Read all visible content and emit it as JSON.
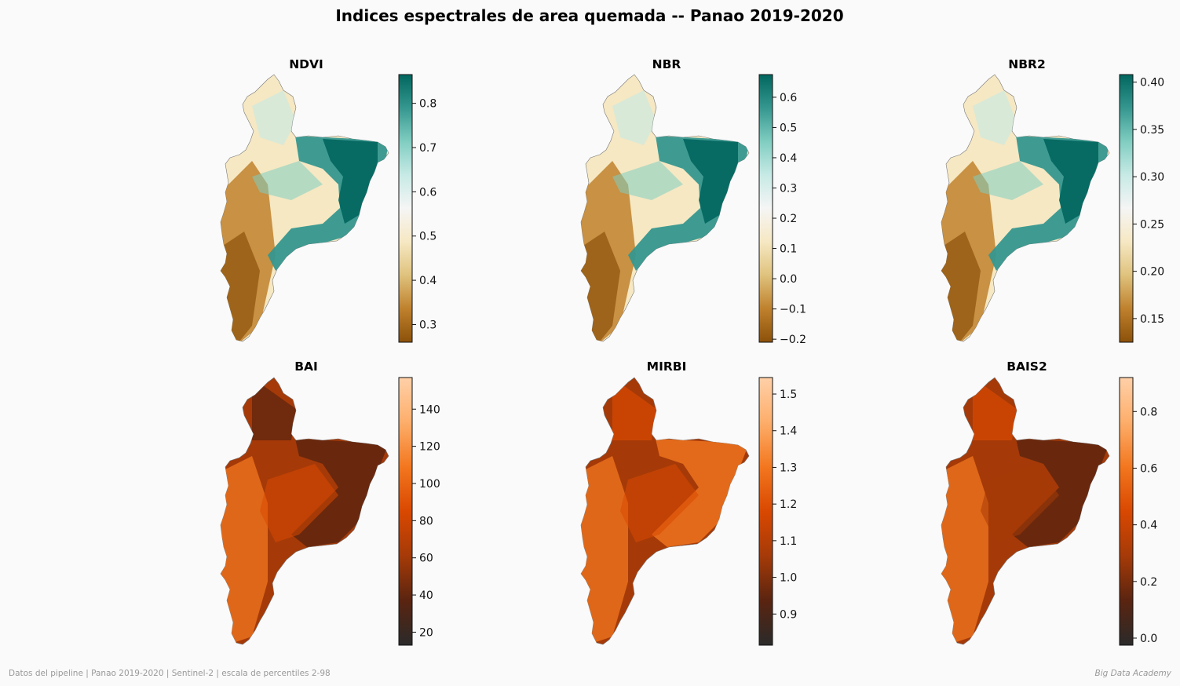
{
  "suptitle": "Indices espectrales de area quemada -- Panao 2019-2020",
  "footer_left": "Datos del pipeline | Panao 2019-2020 | Sentinel-2 | escala de percentiles 2-98",
  "footer_right": "Big Data Academy",
  "colormaps": {
    "BrBG": [
      "#8c510a",
      "#bf812d",
      "#dfc27d",
      "#f6e8c3",
      "#f5f5f5",
      "#c7eae5",
      "#80cdc1",
      "#35978f",
      "#01665e"
    ],
    "Oranges_dark": [
      "#2a2a2a",
      "#5a2410",
      "#a53a08",
      "#d94801",
      "#f3771f",
      "#fdae6b",
      "#ffd0a8"
    ]
  },
  "chart_data": [
    {
      "type": "heatmap",
      "title": "NDVI",
      "cmap": "BrBG",
      "vmin": 0.26,
      "vmax": 0.865,
      "ticks": [
        0.3,
        0.4,
        0.5,
        0.6,
        0.7,
        0.8
      ],
      "tick_labels": [
        "0.3",
        "0.4",
        "0.5",
        "0.6",
        "0.7",
        "0.8"
      ]
    },
    {
      "type": "heatmap",
      "title": "NBR",
      "cmap": "BrBG",
      "vmin": -0.21,
      "vmax": 0.675,
      "ticks": [
        -0.2,
        -0.1,
        0.0,
        0.1,
        0.2,
        0.3,
        0.4,
        0.5,
        0.6
      ],
      "tick_labels": [
        "−0.2",
        "−0.1",
        "0.0",
        "0.1",
        "0.2",
        "0.3",
        "0.4",
        "0.5",
        "0.6"
      ]
    },
    {
      "type": "heatmap",
      "title": "NBR2",
      "cmap": "BrBG",
      "vmin": 0.125,
      "vmax": 0.408,
      "ticks": [
        0.15,
        0.2,
        0.25,
        0.3,
        0.35,
        0.4
      ],
      "tick_labels": [
        "0.15",
        "0.20",
        "0.25",
        "0.30",
        "0.35",
        "0.40"
      ]
    },
    {
      "type": "heatmap",
      "title": "BAI",
      "cmap": "Oranges_dark",
      "vmin": 13,
      "vmax": 157,
      "ticks": [
        20,
        40,
        60,
        80,
        100,
        120,
        140
      ],
      "tick_labels": [
        "20",
        "40",
        "60",
        "80",
        "100",
        "120",
        "140"
      ]
    },
    {
      "type": "heatmap",
      "title": "MIRBI",
      "cmap": "Oranges_dark",
      "vmin": 0.815,
      "vmax": 1.545,
      "ticks": [
        0.9,
        1.0,
        1.1,
        1.2,
        1.3,
        1.4,
        1.5
      ],
      "tick_labels": [
        "0.9",
        "1.0",
        "1.1",
        "1.2",
        "1.3",
        "1.4",
        "1.5"
      ]
    },
    {
      "type": "heatmap",
      "title": "BAIS2",
      "cmap": "Oranges_dark",
      "vmin": -0.025,
      "vmax": 0.92,
      "ticks": [
        0.0,
        0.2,
        0.4,
        0.6,
        0.8
      ],
      "tick_labels": [
        "0.0",
        "0.2",
        "0.4",
        "0.6",
        "0.8"
      ]
    }
  ]
}
